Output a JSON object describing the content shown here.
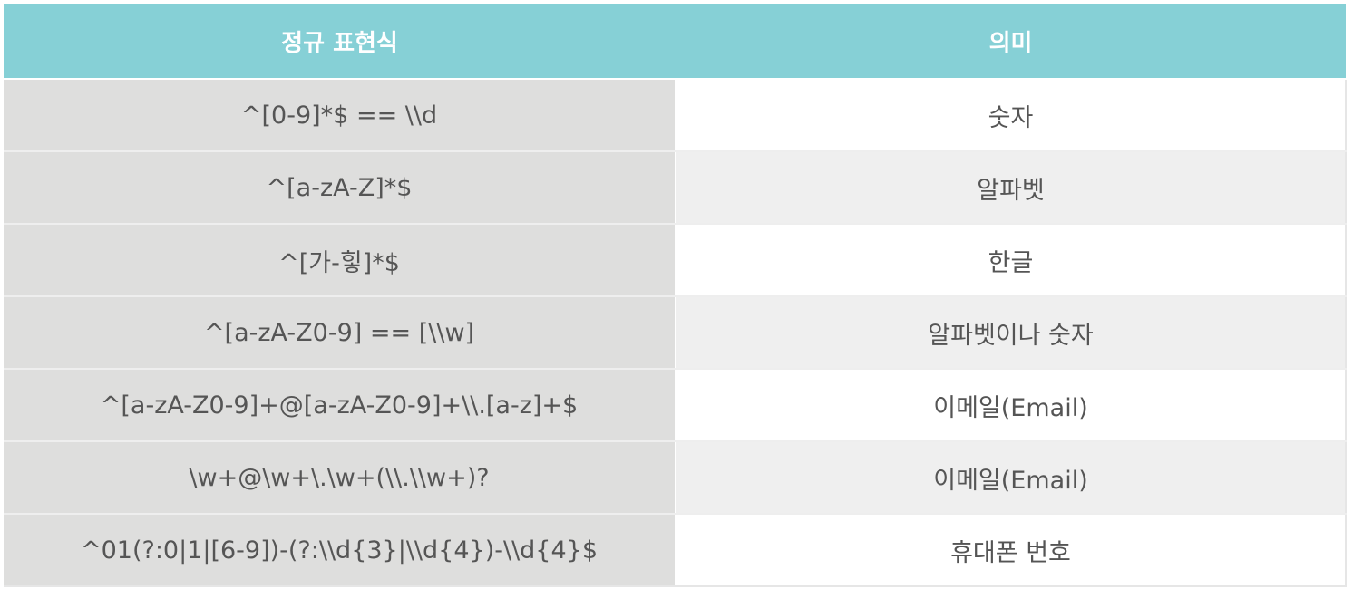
{
  "header": {
    "col_pattern": "정규 표현식",
    "col_meaning": "의미"
  },
  "rows": [
    {
      "pattern": "^[0-9]*$ == \\\\d",
      "meaning": "숫자"
    },
    {
      "pattern": "^[a-zA-Z]*$",
      "meaning": "알파벳"
    },
    {
      "pattern": "^[가-힣]*$",
      "meaning": "한글"
    },
    {
      "pattern": "^[a-zA-Z0-9] == [\\\\w]",
      "meaning": "알파벳이나 숫자"
    },
    {
      "pattern": "^[a-zA-Z0-9]+@[a-zA-Z0-9]+\\\\.[a-z]+$",
      "meaning": "이메일(Email)"
    },
    {
      "pattern": "\\w+@\\w+\\.\\w+(\\\\.\\\\w+)?",
      "meaning": "이메일(Email)"
    },
    {
      "pattern": "^01(?:0|1|[6-9])-(?:\\\\d{3}|\\\\d{4})-\\\\d{4}$",
      "meaning": "휴대폰 번호"
    }
  ],
  "colors": {
    "header_bg": "#86d0d6",
    "header_text": "#ffffff",
    "pattern_bg": "#dededd",
    "meaning_alt_bg": "#efefef",
    "body_text": "#555555"
  }
}
